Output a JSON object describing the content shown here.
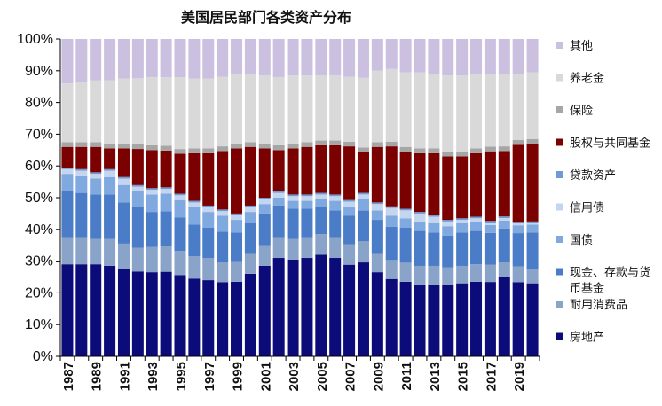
{
  "chart_data": {
    "type": "stacked_bar_100",
    "title": "美国居民部门各类资产分布",
    "xlabel": "",
    "ylabel": "",
    "ylim": [
      0,
      100
    ],
    "yticks": [
      "0%",
      "10%",
      "20%",
      "30%",
      "40%",
      "50%",
      "60%",
      "70%",
      "80%",
      "90%",
      "100%"
    ],
    "categories": [
      "1987",
      "1988",
      "1989",
      "1990",
      "1991",
      "1992",
      "1993",
      "1994",
      "1995",
      "1996",
      "1997",
      "1998",
      "1999",
      "2000",
      "2001",
      "2002",
      "2003",
      "2004",
      "2005",
      "2006",
      "2007",
      "2008",
      "2009",
      "2010",
      "2011",
      "2012",
      "2013",
      "2014",
      "2015",
      "2016",
      "2017",
      "2018",
      "2019",
      "2020"
    ],
    "xtick_labels": [
      "1987",
      "1989",
      "1991",
      "1993",
      "1995",
      "1997",
      "1999",
      "2001",
      "2003",
      "2005",
      "2007",
      "2009",
      "2011",
      "2013",
      "2015",
      "2017",
      "2019"
    ],
    "series": [
      {
        "name": "房地产",
        "color": "#0b0b7a",
        "values": [
          29.0,
          29.0,
          29.0,
          28.5,
          27.5,
          27.0,
          26.5,
          26.5,
          25.5,
          24.5,
          24.0,
          23.5,
          23.5,
          26.0,
          28.5,
          31.0,
          30.5,
          31.0,
          32.0,
          31.0,
          29.0,
          29.0,
          26.5,
          24.5,
          23.5,
          22.5,
          22.5,
          22.5,
          23.0,
          23.5,
          23.5,
          25.0,
          23.5,
          23.0
        ]
      },
      {
        "name": "耐用消费品",
        "color": "#8aa3c8",
        "values": [
          8.5,
          8.5,
          8.0,
          8.5,
          8.0,
          7.5,
          8.0,
          8.0,
          7.5,
          7.0,
          7.0,
          6.5,
          6.5,
          6.5,
          6.5,
          6.5,
          6.5,
          6.5,
          6.5,
          6.5,
          6.5,
          6.5,
          6.0,
          6.0,
          6.0,
          6.0,
          6.0,
          5.5,
          5.5,
          5.5,
          5.5,
          5.0,
          5.0,
          4.5
        ]
      },
      {
        "name": "现金、存款与货币基金",
        "color": "#4a7cc7",
        "values": [
          14.5,
          14.0,
          14.0,
          14.0,
          13.0,
          13.0,
          11.0,
          11.0,
          10.5,
          10.0,
          9.5,
          9.5,
          9.0,
          9.5,
          10.0,
          10.0,
          9.5,
          9.0,
          8.5,
          8.5,
          9.0,
          9.5,
          10.5,
          10.5,
          11.0,
          11.0,
          10.5,
          10.0,
          10.5,
          10.5,
          10.0,
          10.5,
          10.5,
          11.5
        ]
      },
      {
        "name": "国债",
        "color": "#7fa9df",
        "values": [
          5.5,
          5.5,
          5.0,
          5.5,
          5.5,
          5.0,
          5.5,
          5.5,
          5.5,
          5.5,
          5.0,
          5.0,
          4.0,
          3.5,
          3.0,
          2.5,
          2.5,
          2.5,
          2.5,
          3.0,
          3.0,
          3.5,
          3.0,
          3.5,
          3.0,
          3.0,
          3.0,
          3.0,
          3.0,
          3.0,
          2.5,
          2.5,
          2.5,
          2.5
        ]
      },
      {
        "name": "信用债",
        "color": "#c3d5ef",
        "values": [
          1.5,
          1.5,
          1.5,
          2.0,
          2.0,
          1.5,
          1.5,
          1.5,
          1.5,
          1.5,
          1.5,
          1.5,
          1.5,
          1.5,
          1.5,
          1.5,
          1.5,
          1.5,
          1.5,
          1.5,
          1.5,
          1.5,
          2.0,
          2.5,
          2.5,
          2.5,
          2.0,
          1.5,
          1.0,
          1.0,
          0.8,
          0.8,
          0.6,
          0.5
        ]
      },
      {
        "name": "贷款资产",
        "color": "#6e9ad5",
        "values": [
          0.5,
          0.5,
          0.5,
          0.5,
          0.5,
          0.5,
          0.5,
          0.5,
          0.5,
          0.5,
          0.5,
          0.5,
          0.5,
          0.5,
          0.5,
          0.5,
          0.5,
          0.5,
          0.5,
          0.5,
          0.5,
          0.5,
          0.5,
          0.5,
          0.5,
          0.5,
          0.5,
          0.5,
          0.5,
          0.5,
          0.5,
          0.5,
          0.5,
          0.5
        ]
      },
      {
        "name": "股权与共同基金",
        "color": "#7b0000",
        "values": [
          6.5,
          7.0,
          8.0,
          6.5,
          9.0,
          11.5,
          12.0,
          11.5,
          12.5,
          15.0,
          16.5,
          18.5,
          20.5,
          18.5,
          15.5,
          13.0,
          14.5,
          15.0,
          15.0,
          15.5,
          17.0,
          12.5,
          17.5,
          19.0,
          18.0,
          18.5,
          19.5,
          20.0,
          19.5,
          20.0,
          22.0,
          20.7,
          24.4,
          24.5
        ]
      },
      {
        "name": "保险",
        "color": "#a6a6a6",
        "values": [
          1.5,
          1.5,
          1.5,
          1.5,
          1.5,
          1.5,
          1.5,
          1.5,
          1.5,
          1.5,
          1.5,
          1.5,
          1.5,
          1.5,
          1.5,
          1.5,
          1.5,
          1.5,
          1.5,
          1.5,
          1.5,
          1.5,
          1.5,
          1.5,
          1.5,
          1.5,
          1.5,
          1.5,
          1.5,
          1.5,
          1.5,
          1.5,
          1.5,
          1.5
        ]
      },
      {
        "name": "养老金",
        "color": "#d9d9d9",
        "values": [
          18.5,
          19.0,
          19.5,
          20.0,
          20.5,
          21.0,
          21.5,
          21.5,
          22.5,
          22.0,
          22.0,
          22.0,
          22.0,
          21.5,
          21.5,
          21.5,
          21.5,
          21.0,
          20.5,
          20.5,
          20.5,
          21.5,
          22.5,
          23.0,
          23.5,
          24.0,
          23.5,
          24.0,
          24.0,
          23.5,
          23.0,
          23.0,
          21.0,
          21.0
        ]
      },
      {
        "name": "其他",
        "color": "#ccc0e0",
        "values": [
          14.0,
          13.5,
          13.0,
          13.0,
          12.5,
          12.5,
          12.0,
          12.0,
          12.0,
          12.5,
          12.5,
          12.0,
          11.0,
          11.0,
          11.5,
          12.0,
          11.5,
          11.5,
          11.5,
          11.5,
          12.0,
          12.0,
          10.0,
          9.5,
          10.5,
          10.5,
          11.0,
          11.5,
          11.5,
          11.0,
          11.0,
          11.0,
          11.0,
          10.5
        ]
      }
    ],
    "legend": {
      "placement": "right",
      "order": [
        "其他",
        "养老金",
        "保险",
        "股权与共同基金",
        "贷款资产",
        "信用债",
        "国债",
        "现金、存款与货币基金",
        "耐用消费品",
        "房地产"
      ],
      "display_lines": {
        "现金、存款与货币基金": [
          "现金、存款与货",
          "币基金"
        ]
      }
    },
    "grid": false
  }
}
